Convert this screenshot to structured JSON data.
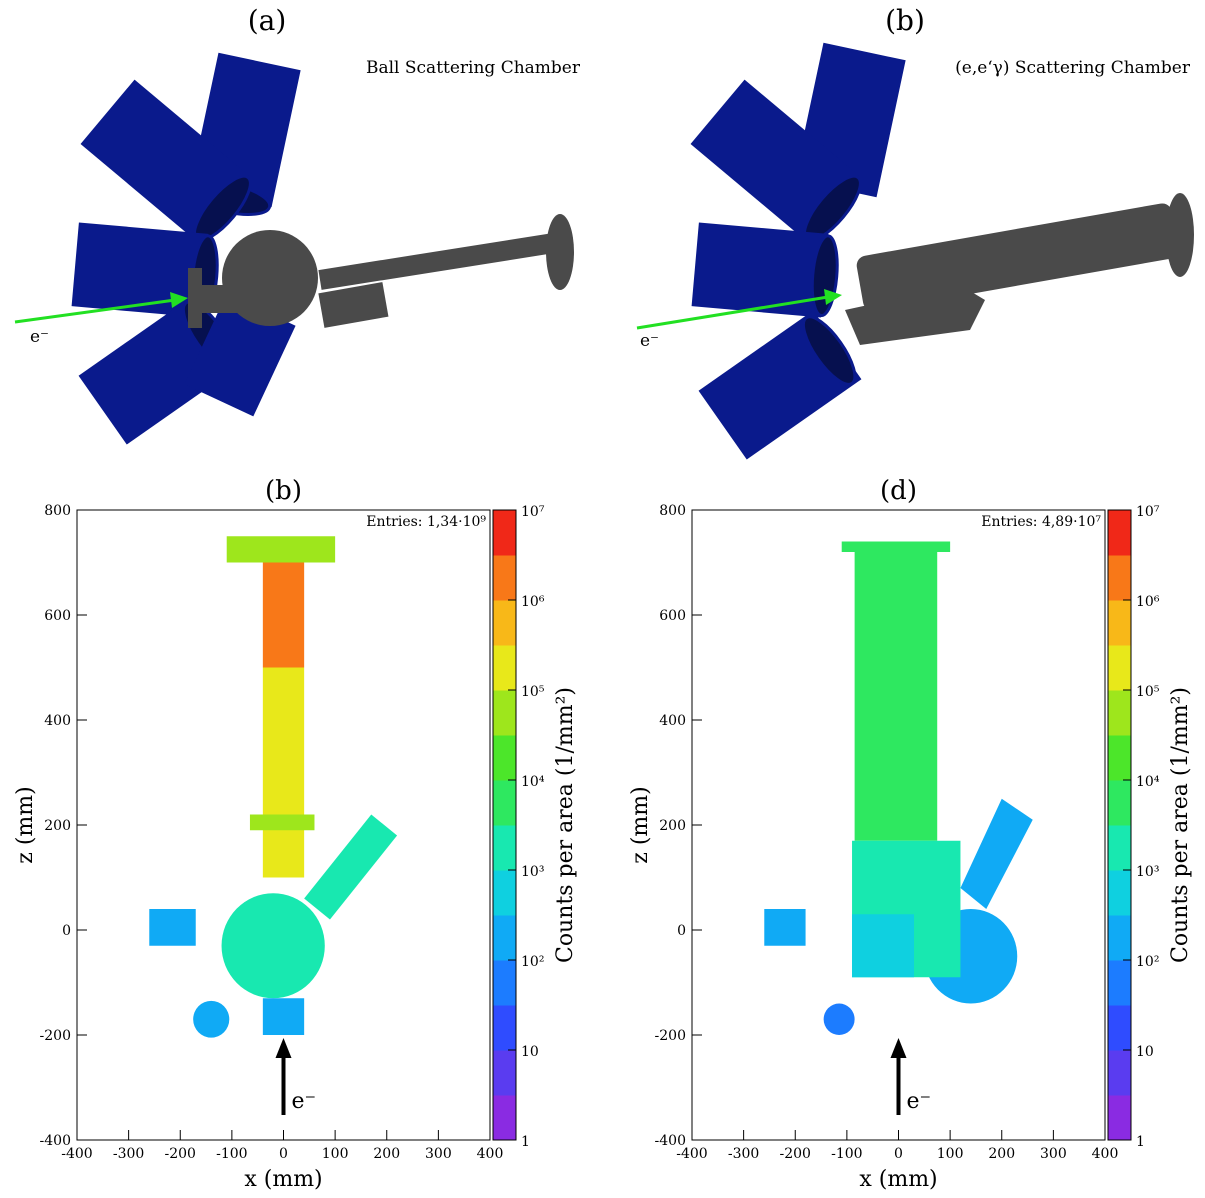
{
  "panels": [
    {
      "label": "(a)",
      "caption": "Ball Scattering Chamber",
      "beam_label": "e⁻"
    },
    {
      "label": "(b)",
      "caption": "(e,e‘γ) Scattering Chamber",
      "beam_label": "e⁻"
    }
  ],
  "chart_data": [
    {
      "type": "heatmap",
      "title": "(b)",
      "xlabel": "x (mm)",
      "ylabel": "z (mm)",
      "annotation": "Entries: 1,34·10⁹",
      "beam_label": "e⁻",
      "xlim": [
        -400,
        400
      ],
      "xticks": [
        -400,
        -300,
        -200,
        -100,
        0,
        100,
        200,
        300,
        400
      ],
      "ylim": [
        -400,
        800
      ],
      "yticks": [
        -400,
        -200,
        0,
        200,
        400,
        600,
        800
      ],
      "colorbar_label": "Counts per area (1/mm²)",
      "clim": [
        1,
        10000000
      ],
      "log_color": true,
      "cticks": [
        1,
        10,
        {
          "value": 100,
          "label": "10²"
        },
        {
          "value": 1000,
          "label": "10³"
        },
        {
          "value": 10000,
          "label": "10⁴"
        },
        {
          "value": 100000,
          "label": "10⁵"
        },
        {
          "value": 1000000,
          "label": "10⁶"
        },
        {
          "value": 10000000,
          "label": "10⁷"
        }
      ],
      "colors": [
        "#8a2be2",
        "#5a3cf0",
        "#2f4cff",
        "#1c7cff",
        "#10aaf5",
        "#0fd0e0",
        "#18e8b0",
        "#2ee860",
        "#4ce62a",
        "#9ee61c",
        "#e8e81a",
        "#f8b818",
        "#f87818",
        "#f02818"
      ],
      "regions": [
        {
          "shape": "rect",
          "x": [
            -110,
            100
          ],
          "z": [
            700,
            750
          ],
          "value": 50000
        },
        {
          "shape": "rect",
          "x": [
            -40,
            40
          ],
          "z": [
            500,
            700
          ],
          "value": 1000000
        },
        {
          "shape": "rect",
          "x": [
            -40,
            40
          ],
          "z": [
            100,
            500
          ],
          "value": 200000
        },
        {
          "shape": "rect",
          "x": [
            -65,
            60
          ],
          "z": [
            190,
            220
          ],
          "value": 50000
        },
        {
          "shape": "polygon",
          "points": [
            [
              40,
              60
            ],
            [
              170,
              220
            ],
            [
              220,
              180
            ],
            [
              90,
              20
            ]
          ],
          "value": 1000
        },
        {
          "shape": "circle",
          "center": [
            -20,
            -30
          ],
          "radius": 100,
          "value": 2000
        },
        {
          "shape": "rect",
          "x": [
            -40,
            40
          ],
          "z": [
            -200,
            -130
          ],
          "value": 300
        },
        {
          "shape": "rect",
          "x": [
            -260,
            -170
          ],
          "z": [
            -30,
            40
          ],
          "value": 200
        },
        {
          "shape": "circle",
          "center": [
            -140,
            -170
          ],
          "radius": 35,
          "value": 200
        }
      ]
    },
    {
      "type": "heatmap",
      "title": "(d)",
      "xlabel": "x (mm)",
      "ylabel": "z (mm)",
      "annotation": "Entries: 4,89·10⁷",
      "beam_label": "e⁻",
      "xlim": [
        -400,
        400
      ],
      "xticks": [
        -400,
        -300,
        -200,
        -100,
        0,
        100,
        200,
        300,
        400
      ],
      "ylim": [
        -400,
        800
      ],
      "yticks": [
        -400,
        -200,
        0,
        200,
        400,
        600,
        800
      ],
      "colorbar_label": "Counts per area (1/mm²)",
      "clim": [
        1,
        10000000
      ],
      "log_color": true,
      "cticks": [
        1,
        10,
        {
          "value": 100,
          "label": "10²"
        },
        {
          "value": 1000,
          "label": "10³"
        },
        {
          "value": 10000,
          "label": "10⁴"
        },
        {
          "value": 100000,
          "label": "10⁵"
        },
        {
          "value": 1000000,
          "label": "10⁶"
        },
        {
          "value": 10000000,
          "label": "10⁷"
        }
      ],
      "colors": [
        "#8a2be2",
        "#5a3cf0",
        "#2f4cff",
        "#1c7cff",
        "#10aaf5",
        "#0fd0e0",
        "#18e8b0",
        "#2ee860",
        "#4ce62a",
        "#9ee61c",
        "#e8e81a",
        "#f8b818",
        "#f87818",
        "#f02818"
      ],
      "regions": [
        {
          "shape": "circle",
          "center": [
            140,
            -50
          ],
          "radius": 90,
          "value": 150
        },
        {
          "shape": "rect",
          "x": [
            -110,
            100
          ],
          "z": [
            720,
            740
          ],
          "value": 8000
        },
        {
          "shape": "rect",
          "x": [
            -85,
            75
          ],
          "z": [
            170,
            720
          ],
          "value": 8000
        },
        {
          "shape": "rect",
          "x": [
            -90,
            120
          ],
          "z": [
            -90,
            170
          ],
          "value": 3000
        },
        {
          "shape": "rect",
          "x": [
            -90,
            30
          ],
          "z": [
            -90,
            30
          ],
          "value": 500
        },
        {
          "shape": "polygon",
          "points": [
            [
              120,
              80
            ],
            [
              200,
              250
            ],
            [
              260,
              210
            ],
            [
              170,
              40
            ]
          ],
          "value": 300
        },
        {
          "shape": "rect",
          "x": [
            -260,
            -180
          ],
          "z": [
            -30,
            40
          ],
          "value": 200
        },
        {
          "shape": "circle",
          "center": [
            -115,
            -170
          ],
          "radius": 30,
          "value": 50
        }
      ]
    }
  ]
}
